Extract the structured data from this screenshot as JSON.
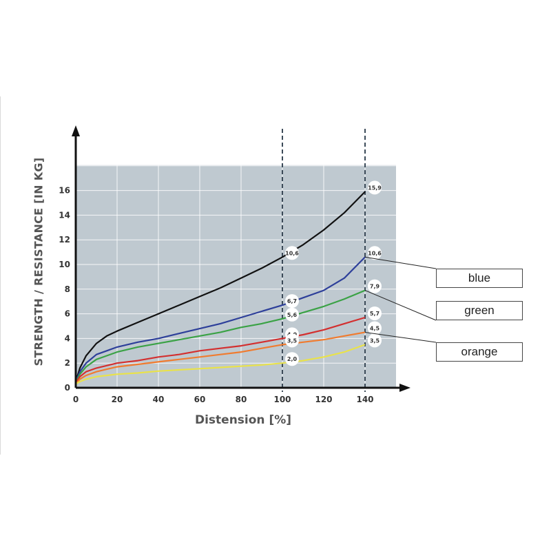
{
  "chart_data": {
    "type": "line",
    "xlabel": "Distension [%]",
    "ylabel": "STRENGTH / RESISTANCE [IN KG]",
    "xlim": [
      0,
      155
    ],
    "ylim": [
      0,
      18
    ],
    "x_ticks": [
      0,
      20,
      40,
      60,
      80,
      100,
      120,
      140
    ],
    "y_ticks": [
      0,
      2,
      4,
      6,
      8,
      10,
      12,
      14,
      16
    ],
    "grid": true,
    "background": "#bfc9d0",
    "reference_lines_x": [
      100,
      140
    ],
    "series": [
      {
        "color": "#111111",
        "x": [
          0,
          2,
          5,
          10,
          15,
          20,
          30,
          40,
          50,
          60,
          70,
          80,
          90,
          100,
          110,
          120,
          130,
          140
        ],
        "y": [
          0.5,
          1.6,
          2.6,
          3.6,
          4.2,
          4.6,
          5.3,
          6.0,
          6.7,
          7.4,
          8.1,
          8.9,
          9.7,
          10.6,
          11.6,
          12.8,
          14.2,
          15.9
        ],
        "markers": [
          {
            "x": 100,
            "label": "10,6"
          },
          {
            "x": 140,
            "label": "15,9"
          }
        ]
      },
      {
        "name": "blue",
        "color": "#2d3f9a",
        "x": [
          0,
          2,
          5,
          10,
          15,
          20,
          30,
          40,
          50,
          60,
          70,
          80,
          90,
          100,
          110,
          120,
          130,
          140
        ],
        "y": [
          0.5,
          1.3,
          2.0,
          2.7,
          3.0,
          3.3,
          3.7,
          4.0,
          4.4,
          4.8,
          5.2,
          5.7,
          6.2,
          6.7,
          7.3,
          7.9,
          8.9,
          10.6
        ],
        "markers": [
          {
            "x": 100,
            "label": "6,7"
          },
          {
            "x": 140,
            "label": "10,6"
          }
        ]
      },
      {
        "name": "green",
        "color": "#3aa245",
        "x": [
          0,
          2,
          5,
          10,
          15,
          20,
          30,
          40,
          50,
          60,
          70,
          80,
          90,
          100,
          110,
          120,
          130,
          140
        ],
        "y": [
          0.4,
          1.1,
          1.7,
          2.3,
          2.6,
          2.9,
          3.3,
          3.6,
          3.9,
          4.2,
          4.5,
          4.9,
          5.2,
          5.6,
          6.1,
          6.6,
          7.2,
          7.9
        ],
        "markers": [
          {
            "x": 100,
            "label": "5,6"
          },
          {
            "x": 140,
            "label": "7,9"
          }
        ]
      },
      {
        "color": "#d32f2f",
        "x": [
          0,
          2,
          5,
          10,
          15,
          20,
          30,
          40,
          50,
          60,
          70,
          80,
          90,
          100,
          110,
          120,
          130,
          140
        ],
        "y": [
          0.4,
          0.9,
          1.3,
          1.6,
          1.8,
          2.0,
          2.2,
          2.5,
          2.7,
          3.0,
          3.2,
          3.4,
          3.7,
          4.0,
          4.3,
          4.7,
          5.2,
          5.7
        ],
        "markers": [
          {
            "x": 100,
            "label": "4,0"
          },
          {
            "x": 140,
            "label": "5,7"
          }
        ]
      },
      {
        "name": "orange",
        "color": "#f07b2f",
        "x": [
          0,
          2,
          5,
          10,
          15,
          20,
          30,
          40,
          50,
          60,
          70,
          80,
          90,
          100,
          110,
          120,
          130,
          140
        ],
        "y": [
          0.3,
          0.7,
          1.0,
          1.3,
          1.5,
          1.7,
          1.9,
          2.1,
          2.3,
          2.5,
          2.7,
          2.9,
          3.2,
          3.5,
          3.7,
          3.9,
          4.2,
          4.5
        ],
        "markers": [
          {
            "x": 100,
            "label": "3,5"
          },
          {
            "x": 140,
            "label": "4,5"
          }
        ]
      },
      {
        "color": "#e9e24a",
        "x": [
          0,
          2,
          5,
          10,
          15,
          20,
          30,
          40,
          50,
          60,
          70,
          80,
          90,
          100,
          110,
          120,
          130,
          140
        ],
        "y": [
          0.3,
          0.5,
          0.7,
          0.9,
          1.0,
          1.1,
          1.2,
          1.35,
          1.45,
          1.55,
          1.65,
          1.75,
          1.85,
          2.0,
          2.2,
          2.5,
          2.9,
          3.5
        ],
        "markers": [
          {
            "x": 100,
            "label": "2,0"
          },
          {
            "x": 140,
            "label": "3,5"
          }
        ]
      }
    ],
    "legend": [
      "blue",
      "green",
      "orange"
    ]
  }
}
